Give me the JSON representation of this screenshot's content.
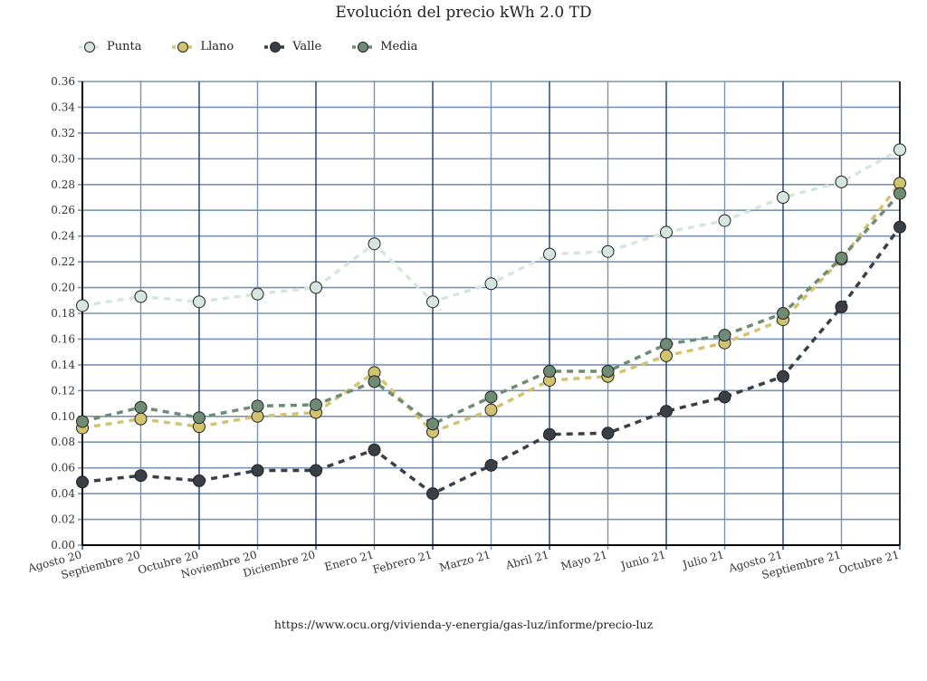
{
  "chart_data": {
    "type": "line",
    "title": "Evolución del precio kWh 2.0 TD",
    "xlabel": "",
    "ylabel": "",
    "ylim": [
      0,
      0.36
    ],
    "yticks": [
      "0.00",
      "0.02",
      "0.04",
      "0.06",
      "0.08",
      "0.10",
      "0.12",
      "0.14",
      "0.16",
      "0.18",
      "0.20",
      "0.22",
      "0.24",
      "0.26",
      "0.28",
      "0.30",
      "0.32",
      "0.34",
      "0.36"
    ],
    "grid": true,
    "legend_position": "top-left",
    "categories": [
      "Agosto 20",
      "Septiembre 20",
      "Octubre 20",
      "Noviembre 20",
      "Diciembre 20",
      "Enero 21",
      "Febrero 21",
      "Marzo 21",
      "Abril 21",
      "Mayo 21",
      "Junio 21",
      "Julio 21",
      "Agosto 21",
      "Septiembre 21",
      "Octubre 21"
    ],
    "series": [
      {
        "name": "Punta",
        "color": "#d5e6df",
        "values": [
          0.186,
          0.193,
          0.189,
          0.195,
          0.2,
          0.234,
          0.189,
          0.203,
          0.226,
          0.228,
          0.243,
          0.252,
          0.27,
          0.282,
          0.307
        ]
      },
      {
        "name": "Llano",
        "color": "#d2c36e",
        "values": [
          0.091,
          0.098,
          0.092,
          0.1,
          0.103,
          0.134,
          0.088,
          0.105,
          0.128,
          0.131,
          0.147,
          0.157,
          0.175,
          0.222,
          0.281
        ]
      },
      {
        "name": "Valle",
        "color": "#3a3f47",
        "values": [
          0.049,
          0.054,
          0.05,
          0.058,
          0.058,
          0.074,
          0.04,
          0.062,
          0.086,
          0.087,
          0.104,
          0.115,
          0.131,
          0.185,
          0.247
        ]
      },
      {
        "name": "Media",
        "color": "#6e8c74",
        "values": [
          0.096,
          0.107,
          0.099,
          0.108,
          0.109,
          0.127,
          0.094,
          0.115,
          0.135,
          0.135,
          0.156,
          0.163,
          0.18,
          0.223,
          0.273
        ]
      }
    ],
    "source": "https://www.ocu.org/vivienda-y-energia/gas-luz/informe/precio-luz"
  },
  "colors": {
    "grid_h": "#7a93b0",
    "grid_v": "#1f3d6b",
    "axis": "#000000"
  }
}
